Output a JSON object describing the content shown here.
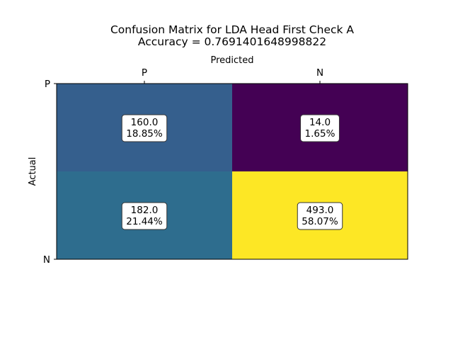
{
  "chart_data": {
    "type": "heatmap",
    "title": "Confusion Matrix for LDA Head First Check A",
    "subtitle": "Accuracy = 0.7691401648998822",
    "xlabel": "Predicted",
    "ylabel": "Actual",
    "x_categories": [
      "P",
      "N"
    ],
    "y_categories": [
      "P",
      "N"
    ],
    "values": [
      [
        160.0,
        14.0
      ],
      [
        182.0,
        493.0
      ]
    ],
    "labels": [
      [
        "160.0\n18.85%",
        "14.0\n1.65%"
      ],
      [
        "182.0\n21.44%",
        "493.0\n58.07%"
      ]
    ],
    "colormap": "viridis",
    "cell_colors": [
      [
        "#355f8d",
        "#440154"
      ],
      [
        "#2e6d8e",
        "#fde725"
      ]
    ],
    "grid": false,
    "colorbar": false
  }
}
